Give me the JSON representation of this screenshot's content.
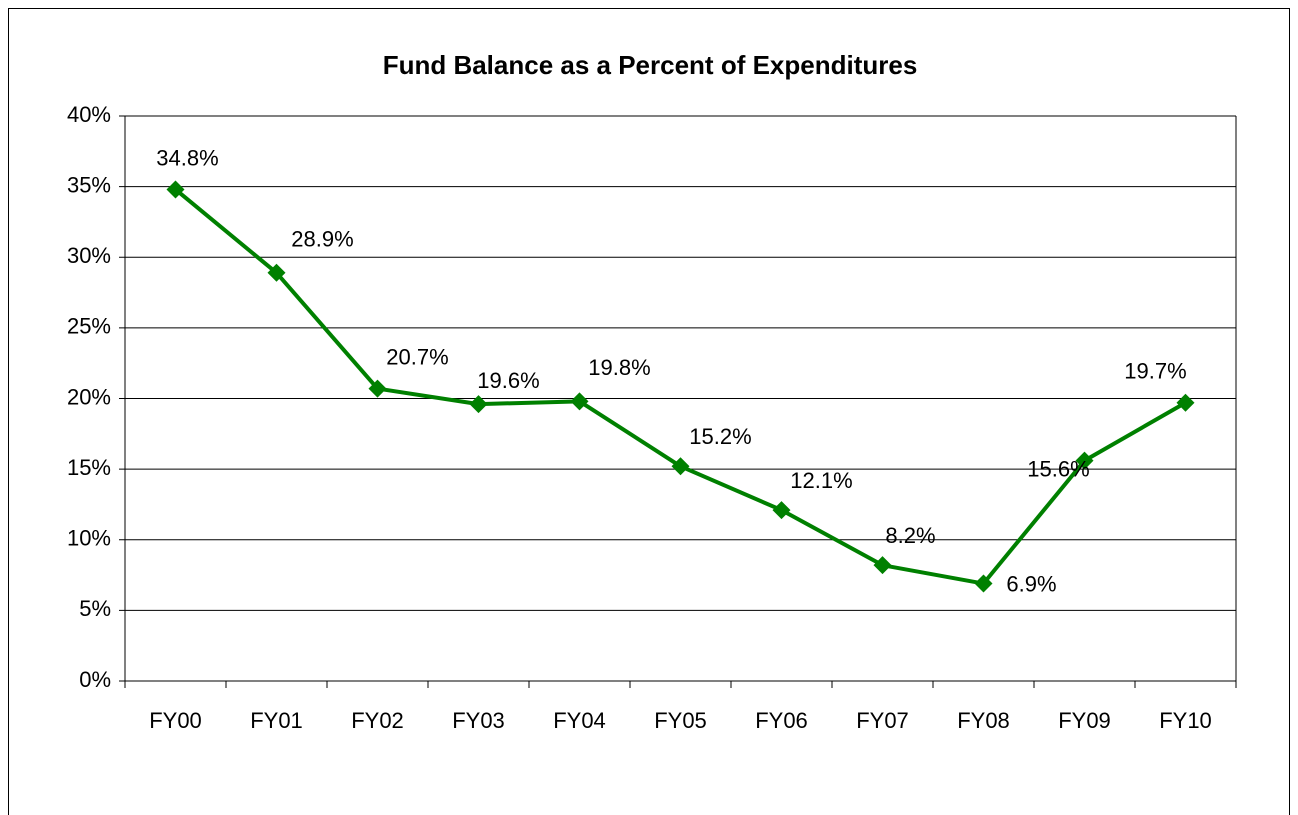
{
  "chart_data": {
    "type": "line",
    "title": "Fund Balance as a Percent of Expenditures",
    "categories": [
      "FY00",
      "FY01",
      "FY02",
      "FY03",
      "FY04",
      "FY05",
      "FY06",
      "FY07",
      "FY08",
      "FY09",
      "FY10"
    ],
    "series": [
      {
        "name": "Fund Balance",
        "color": "#008000",
        "values": [
          34.8,
          28.9,
          20.7,
          19.6,
          19.8,
          15.2,
          12.1,
          8.2,
          6.9,
          15.6,
          19.7
        ],
        "value_labels": [
          "34.8%",
          "28.9%",
          "20.7%",
          "19.6%",
          "19.8%",
          "15.2%",
          "12.1%",
          "8.2%",
          "6.9%",
          "15.6%",
          "19.7%"
        ]
      }
    ],
    "ylim": [
      0,
      40
    ],
    "yticks": [
      {
        "value": 0,
        "label": "0%"
      },
      {
        "value": 5,
        "label": "5%"
      },
      {
        "value": 10,
        "label": "10%"
      },
      {
        "value": 15,
        "label": "15%"
      },
      {
        "value": 20,
        "label": "20%"
      },
      {
        "value": 25,
        "label": "25%"
      },
      {
        "value": 30,
        "label": "30%"
      },
      {
        "value": 35,
        "label": "35%"
      },
      {
        "value": 40,
        "label": "40%"
      }
    ],
    "grid": true
  }
}
